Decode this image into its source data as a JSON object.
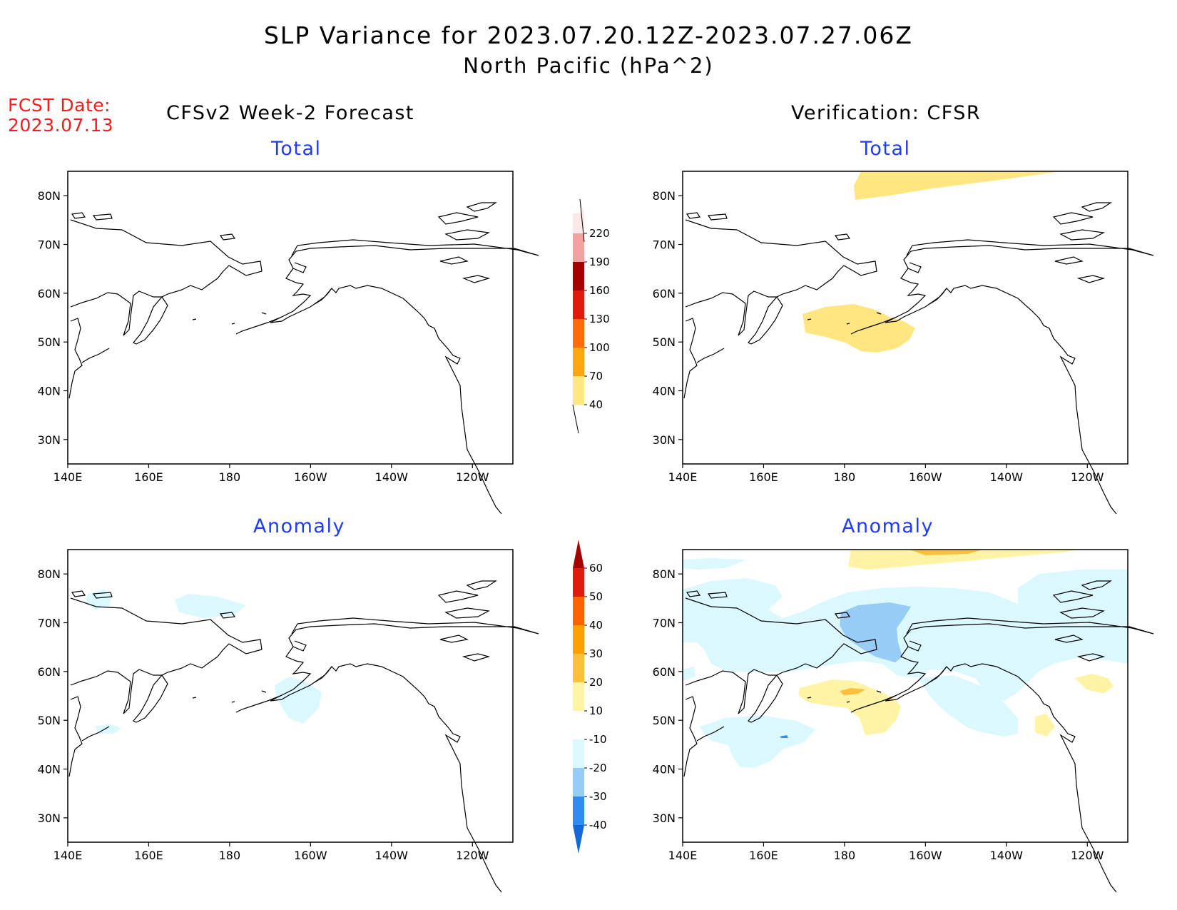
{
  "title": "SLP Variance for 2023.07.20.12Z-2023.07.27.06Z",
  "subtitle": "North Pacific (hPa^2)",
  "fcst_label": "FCST Date:",
  "fcst_date": "2023.07.13",
  "columns": {
    "forecast": "CFSv2 Week-2 Forecast",
    "verification": "Verification: CFSR"
  },
  "panel_titles": {
    "total": "Total",
    "anomaly": "Anomaly"
  },
  "map": {
    "lon_labels": [
      "140E",
      "160E",
      "180",
      "160W",
      "140W",
      "120W"
    ],
    "lat_labels": [
      "80N",
      "70N",
      "60N",
      "50N",
      "40N",
      "30N"
    ],
    "lon_range": [
      140,
      250
    ],
    "lat_range": [
      25,
      85
    ]
  },
  "colorbars": {
    "total": {
      "labels": [
        "40",
        "70",
        "100",
        "130",
        "160",
        "190",
        "220"
      ],
      "colors": [
        "#ffe87f",
        "#ffa511",
        "#ff6c0a",
        "#e11a0c",
        "#a50000",
        "#f4a0a0",
        "#fde8e8"
      ]
    },
    "anomaly": {
      "labels": [
        "-40",
        "-30",
        "-20",
        "-10",
        "10",
        "20",
        "30",
        "40",
        "50",
        "60"
      ],
      "colors": [
        "#1468d8",
        "#2f8cf0",
        "#96ccf5",
        "#dcf8ff",
        "#ffffff",
        "#fff3a5",
        "#ffbf3c",
        "#ffa000",
        "#ff6200",
        "#e11a0c",
        "#a50000"
      ]
    }
  }
}
